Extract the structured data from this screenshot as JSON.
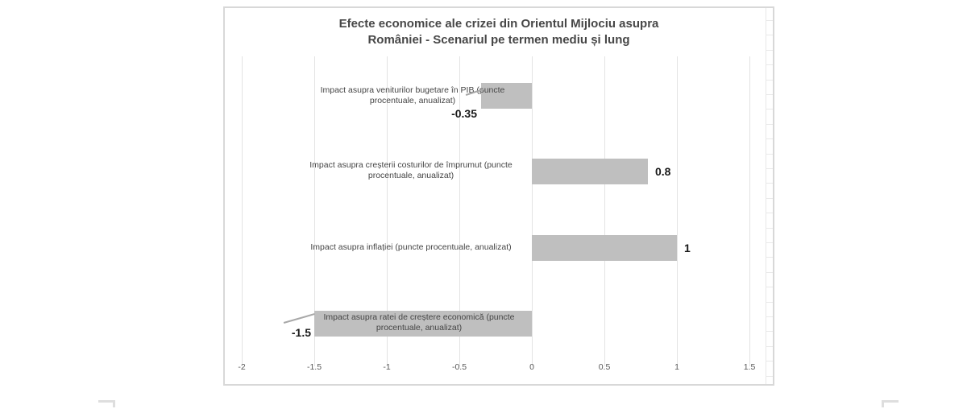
{
  "chart_data": {
    "type": "bar",
    "orientation": "horizontal",
    "title": "Efecte economice ale crizei din Orientul Mijlociu asupra României - Scenariul pe termen mediu și lung",
    "title_lines": [
      "Efecte economice ale crizei din Orientul Mijlociu asupra",
      "României - Scenariul pe termen mediu și lung"
    ],
    "categories": [
      "Impact asupra veniturilor bugetare în PIB (puncte procentuale, anualizat)",
      "Impact asupra creșterii costurilor de împrumut (puncte procentuale, anualizat)",
      "Impact asupra inflației (puncte procentuale, anualizat)",
      "Impact asupra ratei de creștere economică (puncte procentuale, anualizat)"
    ],
    "category_label_lines": [
      [
        "Impact asupra veniturilor bugetare în PIB (puncte",
        "procentuale, anualizat)"
      ],
      [
        "Impact asupra creșterii costurilor de împrumut (puncte",
        "procentuale, anualizat)"
      ],
      [
        "Impact asupra inflației (puncte procentuale, anualizat)"
      ],
      [
        "Impact asupra ratei de creștere economică (puncte",
        "procentuale, anualizat)"
      ]
    ],
    "values": [
      -0.35,
      0.8,
      1,
      -1.5
    ],
    "value_labels": [
      "-0.35",
      "0.8",
      "1",
      "-1.5"
    ],
    "xlabel": "",
    "ylabel": "",
    "xlim": [
      -2,
      1.5
    ],
    "x_ticks": [
      "-2",
      "-1.5",
      "-1",
      "-0.5",
      "0",
      "0.5",
      "1",
      "1.5"
    ],
    "x_tick_values": [
      -2,
      -1.5,
      -1,
      -0.5,
      0,
      0.5,
      1,
      1.5
    ],
    "grid": "vertical-only",
    "legend": "none",
    "bar_color": "#bfbfbf",
    "gridline_color": "#e3e3e3",
    "title_color": "#474747",
    "label_color": "#454545",
    "value_color": "#1a1a1a",
    "axis_label_color": "#595959",
    "frame_border_color": "#d8d8d8"
  }
}
